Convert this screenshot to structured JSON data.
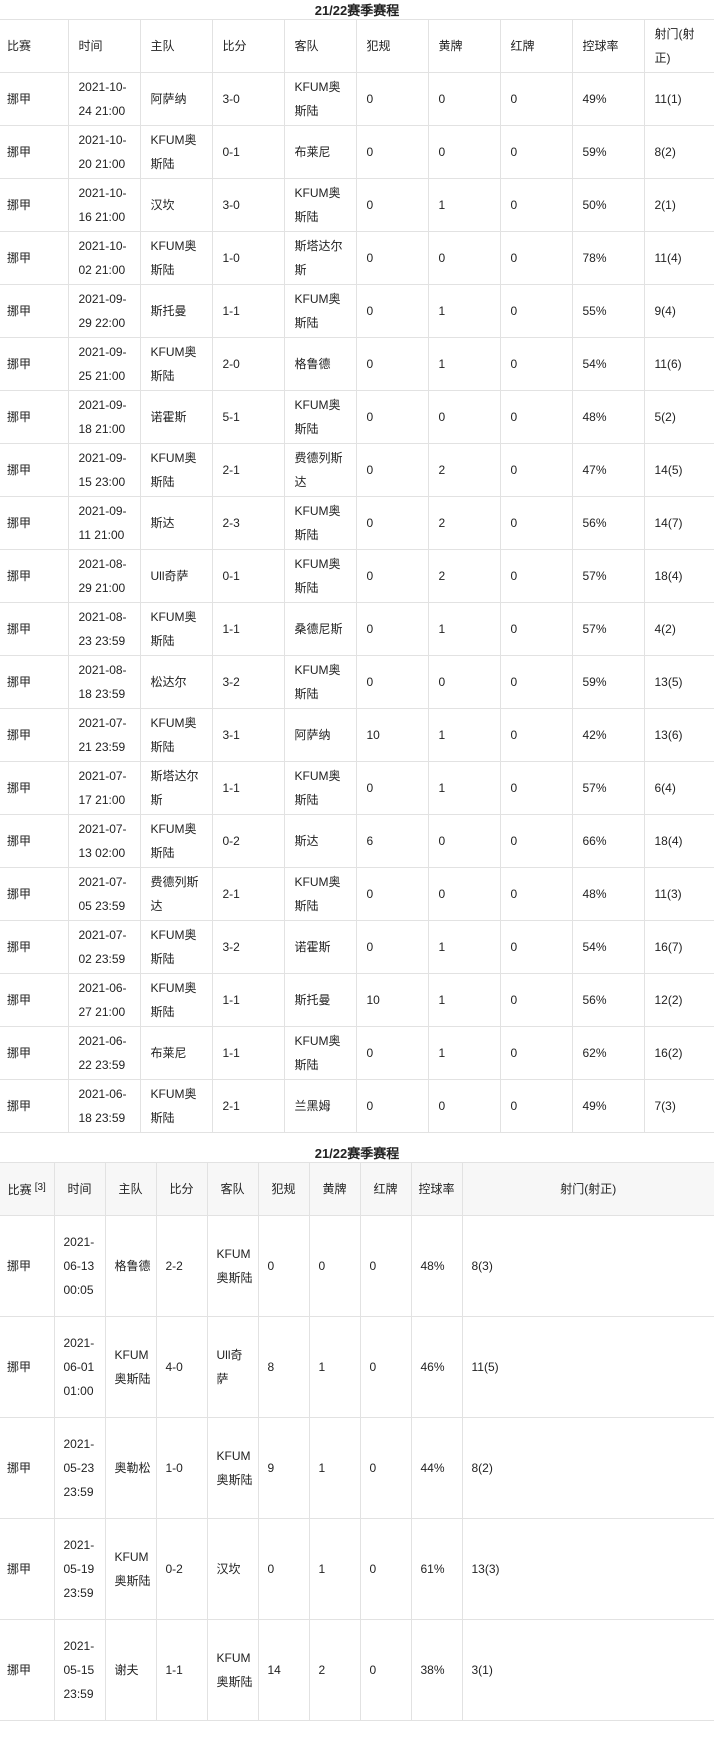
{
  "table1": {
    "title": "21/22赛季赛程",
    "headers": [
      "比赛",
      "时间",
      "主队",
      "比分",
      "客队",
      "犯规",
      "黄牌",
      "红牌",
      "控球率",
      "射门(射正)"
    ],
    "rows": [
      [
        "挪甲",
        "2021-10-24 21:00",
        "阿萨纳",
        "3-0",
        "KFUM奥斯陆",
        "0",
        "0",
        "0",
        "49%",
        "11(1)"
      ],
      [
        "挪甲",
        "2021-10-20 21:00",
        "KFUM奥斯陆",
        "0-1",
        "布莱尼",
        "0",
        "0",
        "0",
        "59%",
        "8(2)"
      ],
      [
        "挪甲",
        "2021-10-16 21:00",
        "汉坎",
        "3-0",
        "KFUM奥斯陆",
        "0",
        "1",
        "0",
        "50%",
        "2(1)"
      ],
      [
        "挪甲",
        "2021-10-02 21:00",
        "KFUM奥斯陆",
        "1-0",
        "斯塔达尔斯",
        "0",
        "0",
        "0",
        "78%",
        "11(4)"
      ],
      [
        "挪甲",
        "2021-09-29 22:00",
        "斯托曼",
        "1-1",
        "KFUM奥斯陆",
        "0",
        "1",
        "0",
        "55%",
        "9(4)"
      ],
      [
        "挪甲",
        "2021-09-25 21:00",
        "KFUM奥斯陆",
        "2-0",
        "格鲁德",
        "0",
        "1",
        "0",
        "54%",
        "11(6)"
      ],
      [
        "挪甲",
        "2021-09-18 21:00",
        "诺霍斯",
        "5-1",
        "KFUM奥斯陆",
        "0",
        "0",
        "0",
        "48%",
        "5(2)"
      ],
      [
        "挪甲",
        "2021-09-15 23:00",
        "KFUM奥斯陆",
        "2-1",
        "费德列斯达",
        "0",
        "2",
        "0",
        "47%",
        "14(5)"
      ],
      [
        "挪甲",
        "2021-09-11 21:00",
        "斯达",
        "2-3",
        "KFUM奥斯陆",
        "0",
        "2",
        "0",
        "56%",
        "14(7)"
      ],
      [
        "挪甲",
        "2021-08-29 21:00",
        "Ull奇萨",
        "0-1",
        "KFUM奥斯陆",
        "0",
        "2",
        "0",
        "57%",
        "18(4)"
      ],
      [
        "挪甲",
        "2021-08-23 23:59",
        "KFUM奥斯陆",
        "1-1",
        "桑德尼斯",
        "0",
        "1",
        "0",
        "57%",
        "4(2)"
      ],
      [
        "挪甲",
        "2021-08-18 23:59",
        "松达尔",
        "3-2",
        "KFUM奥斯陆",
        "0",
        "0",
        "0",
        "59%",
        "13(5)"
      ],
      [
        "挪甲",
        "2021-07-21 23:59",
        "KFUM奥斯陆",
        "3-1",
        "阿萨纳",
        "10",
        "1",
        "0",
        "42%",
        "13(6)"
      ],
      [
        "挪甲",
        "2021-07-17 21:00",
        "斯塔达尔斯",
        "1-1",
        "KFUM奥斯陆",
        "0",
        "1",
        "0",
        "57%",
        "6(4)"
      ],
      [
        "挪甲",
        "2021-07-13 02:00",
        "KFUM奥斯陆",
        "0-2",
        "斯达",
        "6",
        "0",
        "0",
        "66%",
        "18(4)"
      ],
      [
        "挪甲",
        "2021-07-05 23:59",
        "费德列斯达",
        "2-1",
        "KFUM奥斯陆",
        "0",
        "0",
        "0",
        "48%",
        "11(3)"
      ],
      [
        "挪甲",
        "2021-07-02 23:59",
        "KFUM奥斯陆",
        "3-2",
        "诺霍斯",
        "0",
        "1",
        "0",
        "54%",
        "16(7)"
      ],
      [
        "挪甲",
        "2021-06-27 21:00",
        "KFUM奥斯陆",
        "1-1",
        "斯托曼",
        "10",
        "1",
        "0",
        "56%",
        "12(2)"
      ],
      [
        "挪甲",
        "2021-06-22 23:59",
        "布莱尼",
        "1-1",
        "KFUM奥斯陆",
        "0",
        "1",
        "0",
        "62%",
        "16(2)"
      ],
      [
        "挪甲",
        "2021-06-18 23:59",
        "KFUM奥斯陆",
        "2-1",
        "兰黑姆",
        "0",
        "0",
        "0",
        "49%",
        "7(3)"
      ]
    ]
  },
  "table2": {
    "title": "21/22赛季赛程",
    "headers": [
      "比赛",
      "时间",
      "主队",
      "比分",
      "客队",
      "犯规",
      "黄牌",
      "红牌",
      "控球率",
      "射门(射正)"
    ],
    "footnote": "[3]",
    "rows": [
      [
        "挪甲",
        "2021-06-13 00:05",
        "格鲁德",
        "2-2",
        "KFUM奥斯陆",
        "0",
        "0",
        "0",
        "48%",
        "8(3)"
      ],
      [
        "挪甲",
        "2021-06-01 01:00",
        "KFUM奥斯陆",
        "4-0",
        "Ull奇萨",
        "8",
        "1",
        "0",
        "46%",
        "11(5)"
      ],
      [
        "挪甲",
        "2021-05-23 23:59",
        "奥勒松",
        "1-0",
        "KFUM奥斯陆",
        "9",
        "1",
        "0",
        "44%",
        "8(2)"
      ],
      [
        "挪甲",
        "2021-05-19 23:59",
        "KFUM奥斯陆",
        "0-2",
        "汉坎",
        "0",
        "1",
        "0",
        "61%",
        "13(3)"
      ],
      [
        "挪甲",
        "2021-05-15 23:59",
        "谢夫",
        "1-1",
        "KFUM奥斯陆",
        "14",
        "2",
        "0",
        "38%",
        "3(1)"
      ]
    ]
  }
}
